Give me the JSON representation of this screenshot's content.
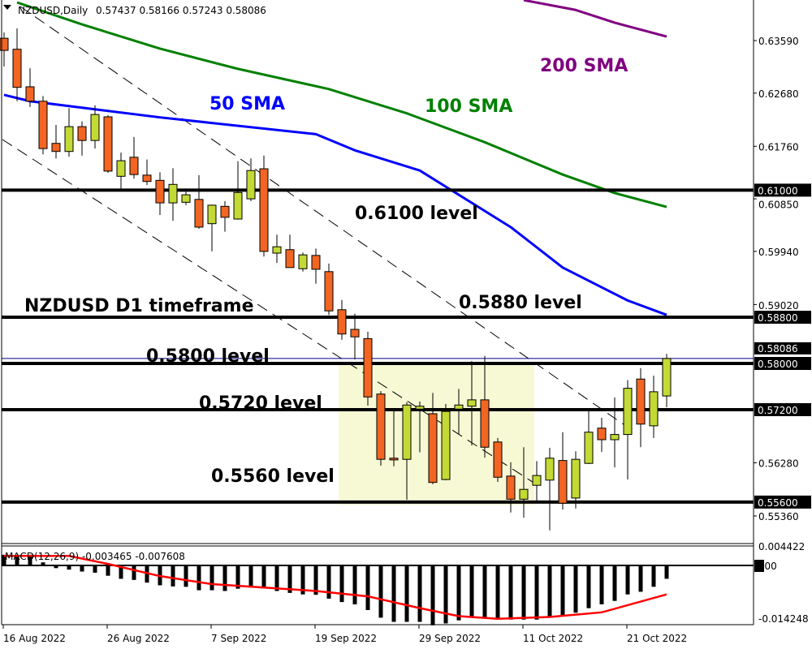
{
  "chart_data": {
    "type": "candlestick",
    "title": "NZDUSD,Daily",
    "ohlc_readout": [
      "0.57437",
      "0.58166",
      "0.57243",
      "0.58086"
    ],
    "ylim": [
      0.548,
      0.643
    ],
    "y_ticks": [
      "0.63590",
      "0.62680",
      "0.61760",
      "0.60850",
      "0.59940",
      "0.59020",
      "0.56280",
      "0.55360"
    ],
    "x_tick_labels": [
      {
        "label": "16 Aug 2022",
        "index": 0
      },
      {
        "label": "26 Aug 2022",
        "index": 8
      },
      {
        "label": "7 Sep 2022",
        "index": 16
      },
      {
        "label": "19 Sep 2022",
        "index": 24
      },
      {
        "label": "29 Sep 2022",
        "index": 32
      },
      {
        "label": "11 Oct 2022",
        "index": 40
      },
      {
        "label": "21 Oct 2022",
        "index": 48
      }
    ],
    "candles": [
      [
        0.6363,
        0.6373,
        0.6314,
        0.6342
      ],
      [
        0.6344,
        0.638,
        0.6254,
        0.6278
      ],
      [
        0.6279,
        0.6311,
        0.6244,
        0.6254
      ],
      [
        0.6254,
        0.6263,
        0.6162,
        0.6172
      ],
      [
        0.6181,
        0.6213,
        0.6155,
        0.6167
      ],
      [
        0.6167,
        0.6242,
        0.6158,
        0.621
      ],
      [
        0.621,
        0.6219,
        0.616,
        0.6186
      ],
      [
        0.6186,
        0.6247,
        0.6172,
        0.6231
      ],
      [
        0.6227,
        0.623,
        0.613,
        0.6133
      ],
      [
        0.6124,
        0.6165,
        0.6102,
        0.6151
      ],
      [
        0.6157,
        0.6192,
        0.612,
        0.6127
      ],
      [
        0.6126,
        0.6153,
        0.6109,
        0.6115
      ],
      [
        0.6117,
        0.6131,
        0.6057,
        0.6078
      ],
      [
        0.6078,
        0.6138,
        0.6047,
        0.611
      ],
      [
        0.6079,
        0.6103,
        0.6074,
        0.6092
      ],
      [
        0.6084,
        0.6126,
        0.6033,
        0.6036
      ],
      [
        0.6042,
        0.6075,
        0.5994,
        0.6074
      ],
      [
        0.6072,
        0.6081,
        0.6028,
        0.6053
      ],
      [
        0.605,
        0.615,
        0.6049,
        0.6096
      ],
      [
        0.6085,
        0.6155,
        0.6081,
        0.6134
      ],
      [
        0.6137,
        0.616,
        0.5985,
        0.5994
      ],
      [
        0.5991,
        0.6023,
        0.5974,
        0.6002
      ],
      [
        0.5997,
        0.6023,
        0.5966,
        0.5966
      ],
      [
        0.5964,
        0.5992,
        0.5959,
        0.5988
      ],
      [
        0.5987,
        0.5999,
        0.5938,
        0.5963
      ],
      [
        0.5959,
        0.5973,
        0.5884,
        0.5891
      ],
      [
        0.5893,
        0.591,
        0.5841,
        0.5851
      ],
      [
        0.5859,
        0.5886,
        0.5807,
        0.5846
      ],
      [
        0.5843,
        0.5855,
        0.5727,
        0.5742
      ],
      [
        0.5747,
        0.5752,
        0.5623,
        0.5634
      ],
      [
        0.5636,
        0.572,
        0.5622,
        0.5633
      ],
      [
        0.5634,
        0.5733,
        0.5564,
        0.5728
      ],
      [
        0.5721,
        0.5734,
        0.5646,
        0.5726
      ],
      [
        0.5713,
        0.5749,
        0.5591,
        0.5594
      ],
      [
        0.5599,
        0.573,
        0.5598,
        0.5717
      ],
      [
        0.5721,
        0.5756,
        0.5678,
        0.5728
      ],
      [
        0.5726,
        0.5804,
        0.5658,
        0.5737
      ],
      [
        0.5737,
        0.5813,
        0.5637,
        0.5655
      ],
      [
        0.5664,
        0.5671,
        0.5595,
        0.5603
      ],
      [
        0.5605,
        0.5629,
        0.5542,
        0.5565
      ],
      [
        0.5565,
        0.5655,
        0.5533,
        0.5582
      ],
      [
        0.5589,
        0.5631,
        0.5558,
        0.5606
      ],
      [
        0.5598,
        0.5654,
        0.5511,
        0.5636
      ],
      [
        0.5632,
        0.5681,
        0.5547,
        0.5558
      ],
      [
        0.5567,
        0.5648,
        0.5549,
        0.5634
      ],
      [
        0.5627,
        0.5719,
        0.5626,
        0.5681
      ],
      [
        0.5688,
        0.5706,
        0.5647,
        0.5668
      ],
      [
        0.5668,
        0.5741,
        0.562,
        0.5677
      ],
      [
        0.5677,
        0.5771,
        0.5599,
        0.5757
      ],
      [
        0.5773,
        0.5792,
        0.5655,
        0.5695
      ],
      [
        0.5692,
        0.5779,
        0.5671,
        0.5751
      ],
      [
        0.57437,
        0.58166,
        0.57243,
        0.58086
      ]
    ],
    "candle_colors": {
      "bull": "#c3d935",
      "bear": "#f26522"
    },
    "moving_averages": [
      {
        "name": "50 SMA",
        "color": "#0000ff",
        "points": [
          [
            0,
            0.6265
          ],
          [
            2,
            0.6254
          ],
          [
            12,
            0.6226
          ],
          [
            24,
            0.6197
          ],
          [
            27,
            0.6169
          ],
          [
            32,
            0.6134
          ],
          [
            35,
            0.6092
          ],
          [
            39,
            0.6036
          ],
          [
            43,
            0.5966
          ],
          [
            48,
            0.5909
          ],
          [
            51,
            0.5884
          ]
        ]
      },
      {
        "name": "100 SMA",
        "color": "#008000",
        "points": [
          [
            1,
            0.6425
          ],
          [
            6,
            0.6387
          ],
          [
            12,
            0.6345
          ],
          [
            18,
            0.631
          ],
          [
            25,
            0.6275
          ],
          [
            31,
            0.6233
          ],
          [
            37,
            0.6183
          ],
          [
            43,
            0.6127
          ],
          [
            47,
            0.6095
          ],
          [
            51,
            0.6071
          ]
        ]
      },
      {
        "name": "200 SMA",
        "color": "#800080",
        "points": [
          [
            40,
            0.6429
          ],
          [
            44,
            0.6412
          ],
          [
            47,
            0.639
          ],
          [
            51,
            0.6366
          ]
        ]
      }
    ],
    "levels": [
      {
        "price": 0.61,
        "axis_label": "0.61000",
        "text": "0.6100 level"
      },
      {
        "price": 0.588,
        "axis_label": "0.58800",
        "text": "0.5880 level"
      },
      {
        "price": 0.58,
        "axis_label": "0.58000",
        "text": "0.5800 level"
      },
      {
        "price": 0.572,
        "axis_label": "0.57200",
        "text": "0.5720 level"
      },
      {
        "price": 0.556,
        "axis_label": "0.55600",
        "text": "0.5560 level"
      }
    ],
    "current_price": {
      "price": 0.58086,
      "label": "0.58086",
      "color": "#000080"
    },
    "range_box": {
      "from_index": 26,
      "to_index": 41,
      "top": 0.58,
      "bottom": 0.5555,
      "color": "#f7f8d4"
    },
    "annotation": "NZDUSD D1 timeframe",
    "macd": {
      "label": "MACD(12,26,9) -0.003465 -0.007608",
      "y_ticks": [
        "0.004422",
        "-0.014248"
      ],
      "zero_label": "0.00",
      "ylim": [
        -0.0158,
        0.005
      ],
      "histogram": [
        0.0028,
        0.0028,
        0.0028,
        0.0008,
        -0.0007,
        -0.0011,
        -0.0016,
        -0.0019,
        -0.0027,
        -0.0035,
        -0.0038,
        -0.0045,
        -0.0052,
        -0.0055,
        -0.0056,
        -0.0065,
        -0.0065,
        -0.0067,
        -0.0061,
        -0.0058,
        -0.006,
        -0.0067,
        -0.0072,
        -0.0076,
        -0.0077,
        -0.0087,
        -0.0096,
        -0.0102,
        -0.0117,
        -0.0137,
        -0.0148,
        -0.0148,
        -0.0148,
        -0.0157,
        -0.0152,
        -0.0144,
        -0.0137,
        -0.0139,
        -0.0141,
        -0.0142,
        -0.0142,
        -0.0142,
        -0.0135,
        -0.0133,
        -0.0124,
        -0.0112,
        -0.0102,
        -0.0093,
        -0.0076,
        -0.0069,
        -0.0056,
        -0.0035
      ],
      "signal": [
        [
          0,
          0.0025
        ],
        [
          5,
          0.0025
        ],
        [
          8,
          0.0004
        ],
        [
          12,
          -0.0028
        ],
        [
          16,
          -0.0049
        ],
        [
          20,
          -0.0058
        ],
        [
          24,
          -0.0067
        ],
        [
          28,
          -0.0081
        ],
        [
          32,
          -0.0112
        ],
        [
          35,
          -0.0133
        ],
        [
          38,
          -0.014
        ],
        [
          42,
          -0.0135
        ],
        [
          46,
          -0.0123
        ],
        [
          51,
          -0.0076
        ]
      ],
      "signal_color": "#ff0000"
    }
  }
}
